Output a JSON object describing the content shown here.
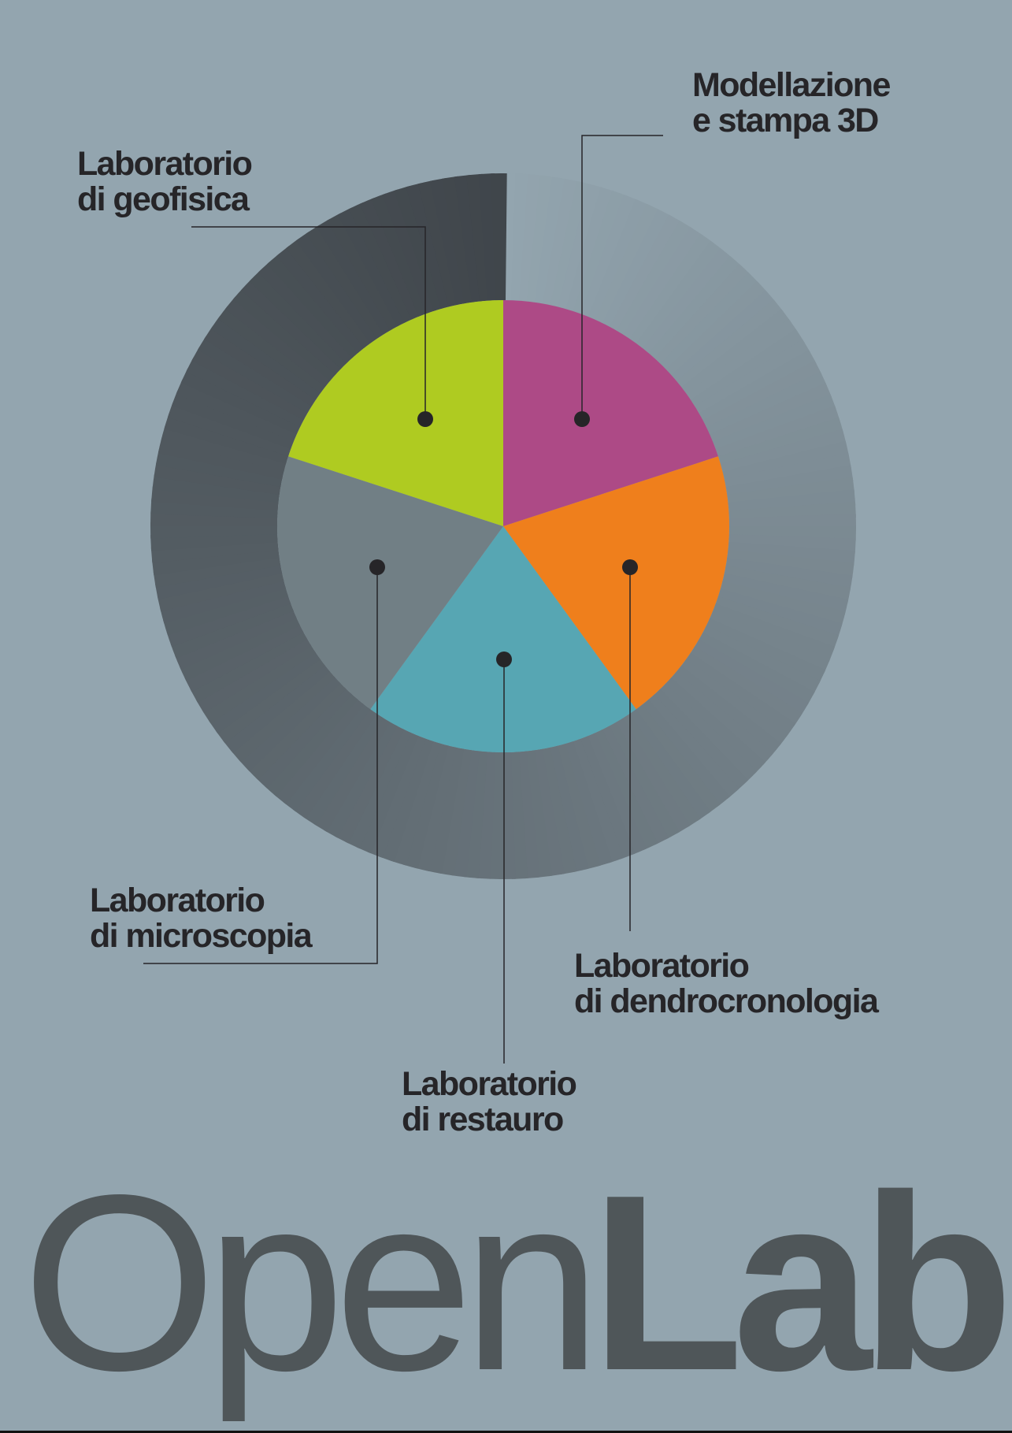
{
  "colors": {
    "background": "#93a5af",
    "text": "#262528",
    "brand_text": "#4f5659",
    "ring_dark": "#40464b",
    "ring_light": "#93a5af"
  },
  "chart_data": {
    "type": "pie",
    "title": "",
    "start_angle_deg": 0,
    "direction": "clockwise",
    "categories": [
      "Modellazione e stampa 3D",
      "Laboratorio di dendrocronologia",
      "Laboratorio di restauro",
      "Laboratorio di microscopia",
      "Laboratorio di geofisica"
    ],
    "values": [
      20,
      20,
      20,
      20,
      20
    ],
    "colors": [
      "#ad4a86",
      "#ef7f1c",
      "#57a6b3",
      "#717f85",
      "#afcb21"
    ],
    "outer_ring": {
      "type": "gradient-ring",
      "from": "#93a5af",
      "to": "#40464b"
    }
  },
  "labels": {
    "modellazione": {
      "line1": "Modellazione",
      "line2": "e stampa 3D"
    },
    "geofisica": {
      "line1": "Laboratorio",
      "line2": "di geofisica"
    },
    "microscopia": {
      "line1": "Laboratorio",
      "line2": "di microscopia"
    },
    "dendrocronologia": {
      "line1": "Laboratorio",
      "line2": "di dendrocronologia"
    },
    "restauro": {
      "line1": "Laboratorio",
      "line2": "di restauro"
    }
  },
  "brand": {
    "part1": "Open",
    "part2": "Lab"
  }
}
